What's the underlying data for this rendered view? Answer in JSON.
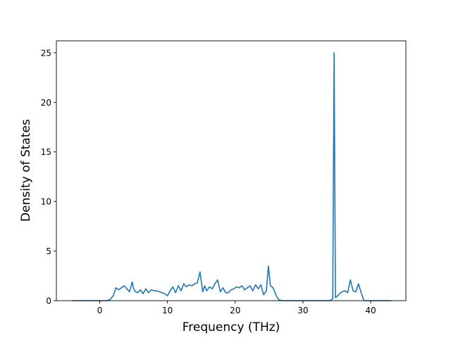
{
  "chart_data": {
    "type": "line",
    "title": "",
    "xlabel": "Frequency (THz)",
    "ylabel": "Density of States",
    "xlim": [
      -6.4,
      45.2
    ],
    "ylim": [
      0,
      26.2
    ],
    "xticks": [
      0,
      10,
      20,
      30,
      40
    ],
    "yticks": [
      0,
      5,
      10,
      15,
      20,
      25
    ],
    "grid": false,
    "legend": "none",
    "series": [
      {
        "color": "#1f77b4",
        "x": [
          -4.0,
          1.0,
          1.5,
          2.0,
          2.4,
          2.8,
          3.2,
          3.6,
          4.0,
          4.4,
          4.8,
          5.0,
          5.3,
          5.6,
          6.0,
          6.4,
          6.8,
          7.2,
          7.6,
          8.0,
          8.4,
          8.8,
          9.2,
          9.6,
          10.0,
          10.4,
          10.8,
          11.2,
          11.6,
          12.0,
          12.4,
          12.8,
          13.2,
          13.6,
          14.0,
          14.4,
          14.8,
          15.2,
          15.5,
          15.8,
          16.2,
          16.6,
          17.0,
          17.4,
          17.8,
          18.2,
          18.6,
          19.0,
          19.4,
          19.8,
          20.2,
          20.6,
          21.0,
          21.4,
          21.8,
          22.2,
          22.6,
          23.0,
          23.4,
          23.8,
          24.2,
          24.6,
          24.9,
          25.2,
          25.6,
          26.0,
          26.4,
          27.0,
          30.0,
          34.0,
          34.4,
          34.6,
          34.8,
          35.0,
          35.4,
          35.8,
          36.2,
          36.6,
          37.0,
          37.4,
          37.8,
          38.2,
          38.6,
          39.0,
          39.4,
          40.0,
          43.0
        ],
        "y": [
          0,
          0,
          0.1,
          0.5,
          1.3,
          1.1,
          1.3,
          1.5,
          1.2,
          0.9,
          1.9,
          1.2,
          0.9,
          0.8,
          1.1,
          0.7,
          1.2,
          0.8,
          1.1,
          1.0,
          1.0,
          0.9,
          0.8,
          0.7,
          0.5,
          1.0,
          1.4,
          0.8,
          1.5,
          1.0,
          1.7,
          1.4,
          1.6,
          1.5,
          1.7,
          1.8,
          2.9,
          0.9,
          1.5,
          1.0,
          1.4,
          1.2,
          1.7,
          2.1,
          0.9,
          1.3,
          0.8,
          0.8,
          1.1,
          1.2,
          1.4,
          1.3,
          1.5,
          1.1,
          1.3,
          1.5,
          1.0,
          1.6,
          1.2,
          1.6,
          0.6,
          1.0,
          3.5,
          1.5,
          1.3,
          0.6,
          0.1,
          0,
          0,
          0,
          0.2,
          25.0,
          0.3,
          0.4,
          0.7,
          0.9,
          1.0,
          0.8,
          2.1,
          1.0,
          0.9,
          1.7,
          0.8,
          0,
          0,
          0,
          0
        ]
      }
    ]
  }
}
